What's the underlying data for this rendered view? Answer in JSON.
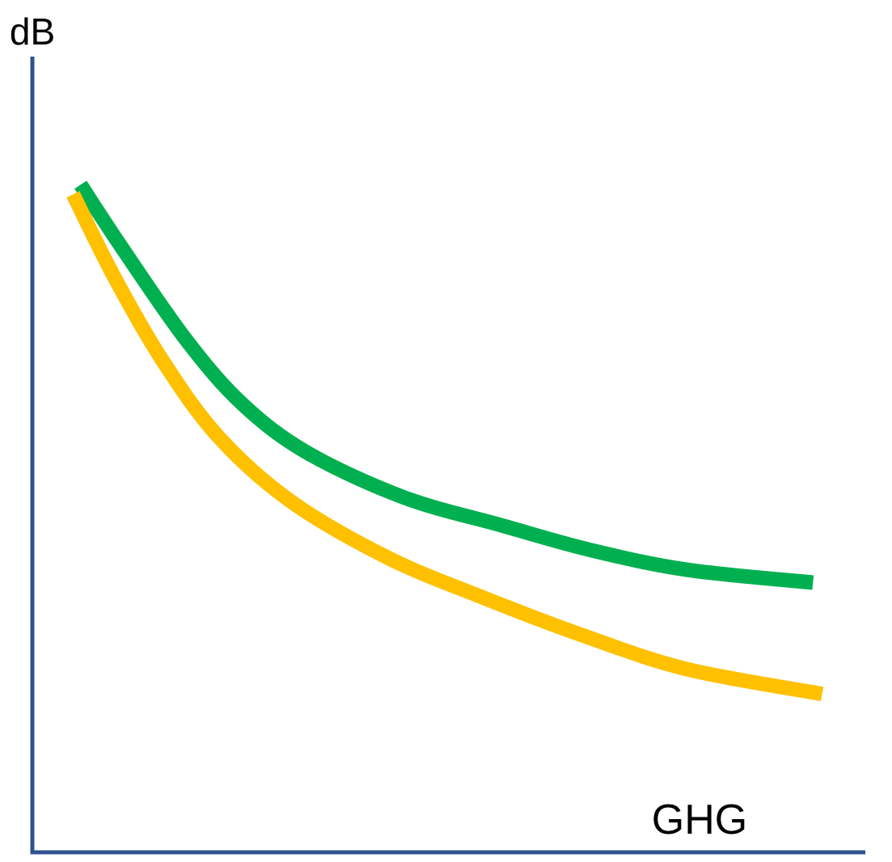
{
  "chart_data": {
    "type": "line",
    "y_label": "dB",
    "x_label": "GHG",
    "xlim": [
      0,
      100
    ],
    "ylim": [
      0,
      100
    ],
    "series": [
      {
        "color": "#00b050",
        "x": [
          5.8,
          10.7,
          18.5,
          25.3,
          33.1,
          44.7,
          56.4,
          67.1,
          78.8,
          93.9
        ],
        "values": [
          83.9,
          76.1,
          64.4,
          56.3,
          50.2,
          44.6,
          41.1,
          38.0,
          35.5,
          33.9
        ]
      },
      {
        "color": "#ffc000",
        "x": [
          4.9,
          9.7,
          15.6,
          22.4,
          31.1,
          42.8,
          54.5,
          66.1,
          78.8,
          95.0
        ],
        "values": [
          82.7,
          72.6,
          61.9,
          52.2,
          44.1,
          37.0,
          31.9,
          27.3,
          23.0,
          19.9
        ]
      }
    ]
  }
}
